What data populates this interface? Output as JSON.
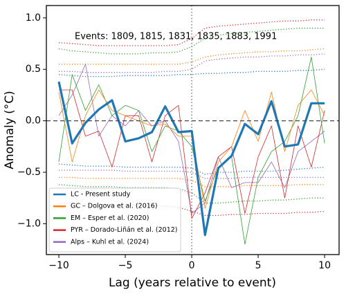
{
  "chart_data": {
    "type": "line",
    "annotation": "Events: 1809, 1815, 1831, 1835, 1883, 1991",
    "xlabel": "Lag (years relative to event)",
    "ylabel": "Anomaly (°C)",
    "x": [
      -10,
      -9,
      -8,
      -7,
      -6,
      -5,
      -4,
      -3,
      -2,
      -1,
      0,
      1,
      2,
      3,
      4,
      5,
      6,
      7,
      8,
      9,
      10
    ],
    "xlim": [
      -10.94,
      11.09
    ],
    "ylim": [
      -1.3,
      1.12
    ],
    "xticks": [
      {
        "value": -10,
        "label": "−10"
      },
      {
        "value": -5,
        "label": "−5"
      },
      0,
      5,
      10
    ],
    "yticks": [
      {
        "value": 1,
        "label": "1.0"
      },
      0.5,
      {
        "value": 0,
        "label": "0.0"
      },
      {
        "value": -0.5,
        "label": "−0.5"
      },
      {
        "value": -1,
        "label": "−1.0"
      }
    ],
    "hline": 0,
    "vline": 0,
    "legend": "lower left",
    "series": [
      {
        "name": "LC - Present study",
        "color": "#1f77b4",
        "width": 3.2,
        "values": [
          0.38,
          -0.22,
          -0.02,
          0.11,
          0.2,
          -0.2,
          -0.17,
          -0.11,
          0.14,
          -0.11,
          -0.1,
          -1.11,
          -0.46,
          -0.34,
          -0.03,
          -0.13,
          0.19,
          -0.25,
          -0.23,
          0.17,
          0.17
        ],
        "upper": [
          0.45,
          0.44,
          0.43,
          0.43,
          0.43,
          0.44,
          0.44,
          0.44,
          0.44,
          0.45,
          0.45,
          0.46,
          0.46,
          0.47,
          0.47,
          0.48,
          0.48,
          0.48,
          0.49,
          0.49,
          0.5
        ],
        "lower": [
          -0.42,
          -0.43,
          -0.44,
          -0.44,
          -0.44,
          -0.45,
          -0.45,
          -0.45,
          -0.45,
          -0.45,
          -0.46,
          -0.52,
          -0.5,
          -0.5,
          -0.49,
          -0.49,
          -0.49,
          -0.48,
          -0.47,
          -0.46,
          -0.45
        ]
      },
      {
        "name": "GC – Dolgova et al. (2016)",
        "color": "#ff7f0e",
        "width": 0.8,
        "values": [
          0.28,
          -0.4,
          0.05,
          0.3,
          0.1,
          0.05,
          0.0,
          -0.05,
          -0.03,
          -0.15,
          -0.15,
          -0.85,
          -0.4,
          -0.25,
          0.1,
          -0.2,
          0.28,
          -0.3,
          0.15,
          0.3,
          0.05
        ],
        "upper": [
          0.55,
          0.55,
          0.55,
          0.55,
          0.55,
          0.55,
          0.55,
          0.55,
          0.55,
          0.55,
          0.57,
          0.62,
          0.64,
          0.65,
          0.66,
          0.67,
          0.67,
          0.68,
          0.68,
          0.69,
          0.7
        ],
        "lower": [
          -0.55,
          -0.55,
          -0.56,
          -0.56,
          -0.56,
          -0.56,
          -0.56,
          -0.56,
          -0.56,
          -0.56,
          -0.58,
          -0.64,
          -0.64,
          -0.64,
          -0.63,
          -0.63,
          -0.63,
          -0.63,
          -0.62,
          -0.62,
          -0.62
        ]
      },
      {
        "name": "EM – Esper et al. (2020)",
        "color": "#2ca02c",
        "width": 0.8,
        "values": [
          -0.4,
          0.45,
          0.1,
          0.35,
          0.05,
          0.15,
          0.1,
          -0.3,
          -0.05,
          -0.1,
          -0.25,
          -0.78,
          -0.45,
          -0.35,
          -1.2,
          -0.55,
          -0.3,
          -0.2,
          0.05,
          0.62,
          -0.22
        ],
        "upper": [
          0.7,
          0.68,
          0.67,
          0.66,
          0.65,
          0.65,
          0.65,
          0.66,
          0.66,
          0.67,
          0.72,
          0.8,
          0.83,
          0.85,
          0.86,
          0.87,
          0.88,
          0.89,
          0.9,
          0.9,
          0.9
        ],
        "lower": [
          -0.62,
          -0.63,
          -0.64,
          -0.64,
          -0.64,
          -0.65,
          -0.65,
          -0.65,
          -0.65,
          -0.66,
          -0.7,
          -0.8,
          -0.8,
          -0.79,
          -0.78,
          -0.78,
          -0.77,
          -0.77,
          -0.76,
          -0.75,
          -0.75
        ]
      },
      {
        "name": "PYR – Dorado-Liñán et al. (2012)",
        "color": "#d62728",
        "width": 0.8,
        "values": [
          0.3,
          0.3,
          -0.15,
          -0.1,
          -0.45,
          0.05,
          0.05,
          -0.4,
          0.05,
          0.15,
          -0.95,
          -0.7,
          -0.35,
          -0.25,
          -0.9,
          -0.35,
          -0.05,
          -0.75,
          -0.05,
          -0.45,
          0.1
        ],
        "upper": [
          0.76,
          0.75,
          0.74,
          0.73,
          0.73,
          0.73,
          0.73,
          0.73,
          0.73,
          0.74,
          0.8,
          0.9,
          0.92,
          0.93,
          0.94,
          0.95,
          0.96,
          0.97,
          0.97,
          0.98,
          0.98
        ],
        "lower": [
          -0.8,
          -0.8,
          -0.81,
          -0.81,
          -0.82,
          -0.82,
          -0.82,
          -0.82,
          -0.83,
          -0.84,
          -0.88,
          -0.92,
          -0.92,
          -0.91,
          -0.91,
          -0.9,
          -0.9,
          -0.9,
          -0.89,
          -0.89,
          -0.88
        ]
      },
      {
        "name": "Alps – Kuhl et al. (2024)",
        "color": "#9467bd",
        "width": 0.8,
        "values": [
          0.05,
          0.25,
          0.55,
          -0.15,
          0.05,
          -0.05,
          0.1,
          -0.05,
          0.0,
          -0.2,
          -0.9,
          -0.8,
          -0.35,
          -0.65,
          -0.6,
          -0.6,
          -0.4,
          -0.65,
          -0.3,
          -0.2,
          -0.1
        ],
        "upper": [
          0.48,
          0.48,
          0.47,
          0.47,
          0.47,
          0.47,
          0.47,
          0.47,
          0.48,
          0.48,
          0.5,
          0.58,
          0.6,
          0.61,
          0.62,
          0.62,
          0.63,
          0.63,
          0.64,
          0.64,
          0.65
        ],
        "lower": [
          -0.48,
          -0.48,
          -0.48,
          -0.48,
          -0.48,
          -0.49,
          -0.49,
          -0.49,
          -0.49,
          -0.49,
          -0.5,
          -0.56,
          -0.56,
          -0.56,
          -0.55,
          -0.55,
          -0.55,
          -0.55,
          -0.55,
          -0.55,
          -0.55
        ]
      }
    ]
  }
}
